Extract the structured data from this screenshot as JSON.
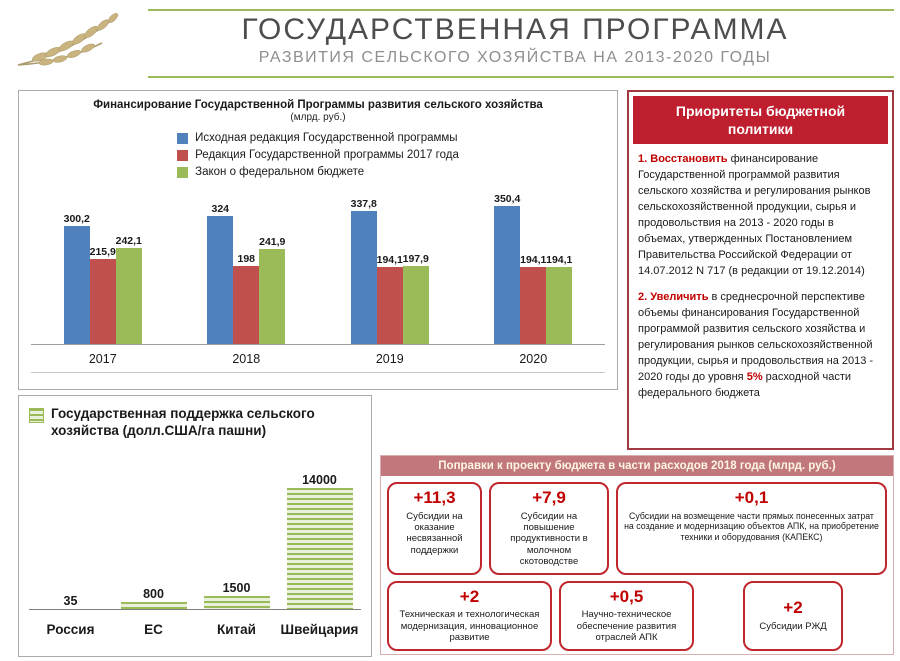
{
  "header": {
    "title": "ГОСУДАРСТВЕННАЯ ПРОГРАММА",
    "subtitle": "РАЗВИТИЯ СЕЛЬСКОГО ХОЗЯЙСТВА НА 2013-2020 ГОДЫ"
  },
  "colors": {
    "accent_green": "#9BBB59",
    "accent_red": "#C00000",
    "panel_header_red": "#BE1E2D",
    "amendments_header_rose": "#C1777B"
  },
  "chart_data": [
    {
      "type": "bar",
      "title": "Финансирование Государственной Программы развития сельского хозяйства",
      "subtitle": "(млрд. руб.)",
      "categories": [
        "2017",
        "2018",
        "2019",
        "2020"
      ],
      "series": [
        {
          "name": "Исходная редакция Государственной программы",
          "color": "#4F81BD",
          "values": [
            300.2,
            324,
            337.8,
            350.4
          ]
        },
        {
          "name": "Редакция Государственной программы 2017 года",
          "color": "#C0504D",
          "values": [
            215.9,
            198,
            194.1,
            194.1
          ]
        },
        {
          "name": "Закон о федеральном бюджете",
          "color": "#9BBB59",
          "values": [
            242.1,
            241.9,
            197.9,
            194.1
          ]
        }
      ],
      "value_labels": [
        [
          "300,2",
          "215,9",
          "242,1"
        ],
        [
          "324",
          "198",
          "241,9"
        ],
        [
          "337,8",
          "194,1",
          "197,9"
        ],
        [
          "350,4",
          "194,1",
          "194,1"
        ]
      ],
      "ylim": [
        0,
        380
      ],
      "legend_position": "top",
      "grid": false
    },
    {
      "type": "bar",
      "title": "Государственная поддержка сельского хозяйства (долл.США/га пашни)",
      "categories": [
        "Россия",
        "ЕС",
        "Китай",
        "Швейцария"
      ],
      "values": [
        35,
        800,
        1500,
        14000
      ],
      "value_labels": [
        "35",
        "800",
        "1500",
        "14000"
      ],
      "ylim": [
        0,
        15000
      ],
      "legend_position": "top",
      "grid": false
    }
  ],
  "priorities": {
    "title": "Приоритеты бюджетной политики",
    "item1": {
      "num": "1.",
      "keyword": "Восстановить",
      "rest": "финансирование Государственной программой развития сельского хозяйства и регулирования рынков сельскохозяйственной продукции, сырья и продовольствия на 2013 - 2020 годы в объемах, утвержденных Постановлением Правительства Российской Федерации от 14.07.2012 N 717 (в редакции от 19.12.2014)"
    },
    "item2": {
      "num": "2.",
      "keyword": "Увеличить",
      "mid": "в среднесрочной перспективе объемы финансирования Государственной программой развития сельского хозяйства и регулирования рынков сельскохозяйственной продукции, сырья и продовольствия на 2013 - 2020 годы до уровня",
      "pct": "5%",
      "tail": "расходной части федерального бюджета"
    }
  },
  "amendments": {
    "title": "Поправки к проекту бюджета в части расходов 2018 года (млрд. руб.)",
    "cards": [
      {
        "value": "+11,3",
        "label": "Субсидии на оказание несвязанной поддержки"
      },
      {
        "value": "+7,9",
        "label": "Субсидии на повышение продуктивности в молочном скотоводстве"
      },
      {
        "value": "+0,1",
        "label": "Субсидии на возмещение части прямых понесенных затрат на создание и модернизацию объектов АПК,  на приобретение техники и оборудования  (КАПЕКС)"
      },
      {
        "value": "+2",
        "label": "Техническая и технологическая модернизация, инновационное развитие"
      },
      {
        "value": "+0,5",
        "label": "Научно-техническое обеспечение развития отраслей АПК"
      },
      {
        "value": "+2",
        "label": "Субсидии РЖД"
      }
    ]
  }
}
